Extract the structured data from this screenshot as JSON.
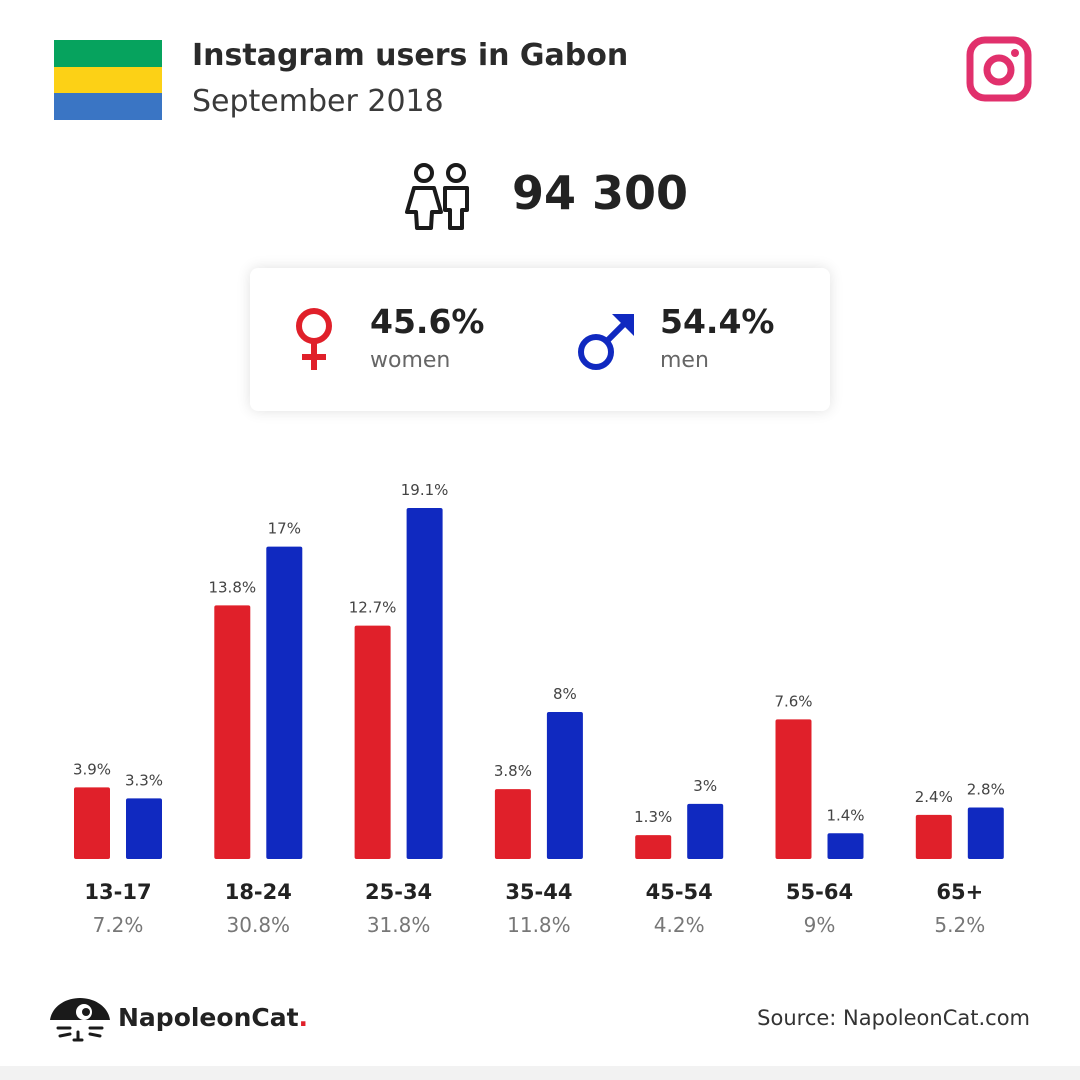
{
  "header": {
    "title": "Instagram users in Gabon",
    "subtitle": "September 2018"
  },
  "flag_colors": [
    "#06a35e",
    "#fcd116",
    "#3a75c4"
  ],
  "icons": {
    "platform": "instagram-icon",
    "users": "users-icon",
    "female": "female-icon",
    "male": "male-icon",
    "brand": "napoleoncat-icon"
  },
  "total": {
    "value": "94 300"
  },
  "gender": {
    "women": {
      "pct": "45.6%",
      "label": "women",
      "color": "#e0202a"
    },
    "men": {
      "pct": "54.4%",
      "label": "men",
      "color": "#1029c0"
    }
  },
  "chart_data": {
    "type": "bar",
    "categories": [
      "13-17",
      "18-24",
      "25-34",
      "35-44",
      "45-54",
      "55-64",
      "65+"
    ],
    "category_totals": [
      "7.2%",
      "30.8%",
      "31.8%",
      "11.8%",
      "4.2%",
      "9%",
      "5.2%"
    ],
    "series": [
      {
        "name": "women",
        "color": "#e0202a",
        "values": [
          3.9,
          13.8,
          12.7,
          3.8,
          1.3,
          7.6,
          2.4
        ],
        "labels": [
          "3.9%",
          "13.8%",
          "12.7%",
          "3.8%",
          "1.3%",
          "7.6%",
          "2.4%"
        ]
      },
      {
        "name": "men",
        "color": "#1029c0",
        "values": [
          3.3,
          17,
          19.1,
          8,
          3,
          1.4,
          2.8
        ],
        "labels": [
          "3.3%",
          "17%",
          "19.1%",
          "8%",
          "3%",
          "1.4%",
          "2.8%"
        ]
      }
    ],
    "ylim": [
      0,
      19.1
    ],
    "grid": false
  },
  "footer": {
    "brand": "NapoleonCat",
    "brand_dot": ".",
    "source": "Source: NapoleonCat.com"
  }
}
